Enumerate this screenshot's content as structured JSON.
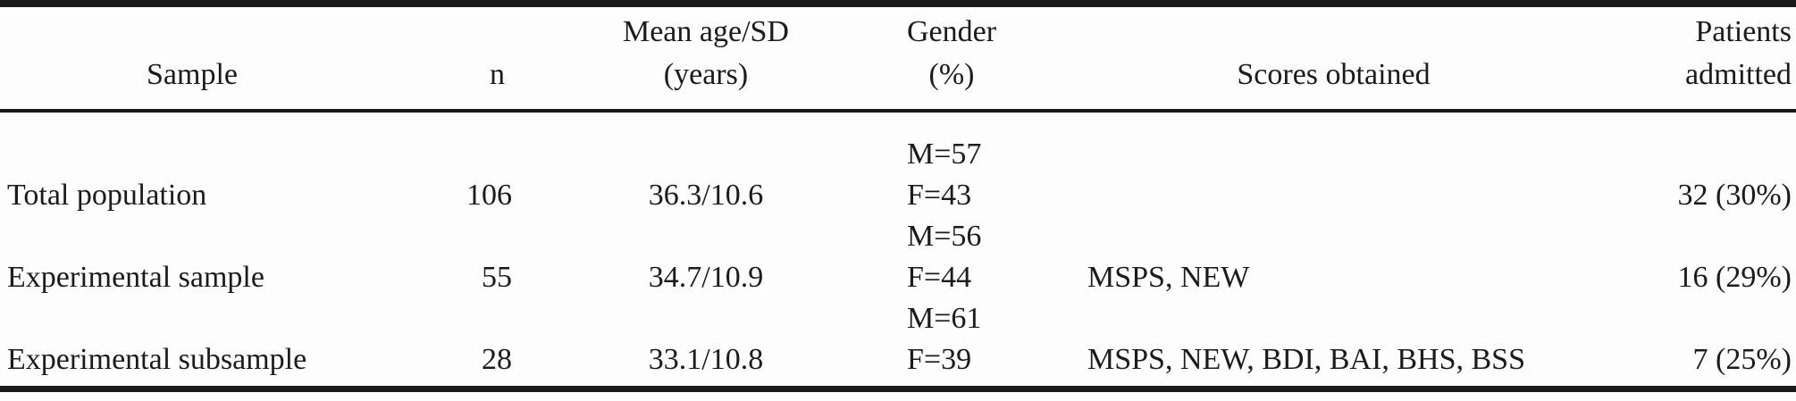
{
  "table": {
    "columns": {
      "sample": {
        "line1": "",
        "line2": "Sample"
      },
      "n": {
        "line1": "",
        "line2": "n"
      },
      "age": {
        "line1": "Mean age/SD",
        "line2": "(years)"
      },
      "gender": {
        "line1": "Gender",
        "line2": "(%)"
      },
      "scores": {
        "line1": "",
        "line2": "Scores obtained"
      },
      "patients": {
        "line1": "Patients",
        "line2": "admitted"
      }
    },
    "rows": [
      {
        "sample": "Total population",
        "n": "106",
        "mean_age_sd": "36.3/10.6",
        "gender_m": "M=57",
        "gender_f": "F=43",
        "scores": "",
        "patients_admitted": "32 (30%)"
      },
      {
        "sample": "Experimental sample",
        "n": "55",
        "mean_age_sd": "34.7/10.9",
        "gender_m": "M=56",
        "gender_f": "F=44",
        "scores": "MSPS, NEW",
        "patients_admitted": "16 (29%)"
      },
      {
        "sample": "Experimental subsample",
        "n": "28",
        "mean_age_sd": "33.1/10.8",
        "gender_m": "M=61",
        "gender_f": "F=39",
        "scores": "MSPS, NEW, BDI, BAI, BHS, BSS",
        "patients_admitted": "7 (25%)"
      }
    ],
    "colors": {
      "text": "#1b1b1b",
      "rule": "#1a1a1a",
      "background": "#fdfdfd"
    }
  }
}
